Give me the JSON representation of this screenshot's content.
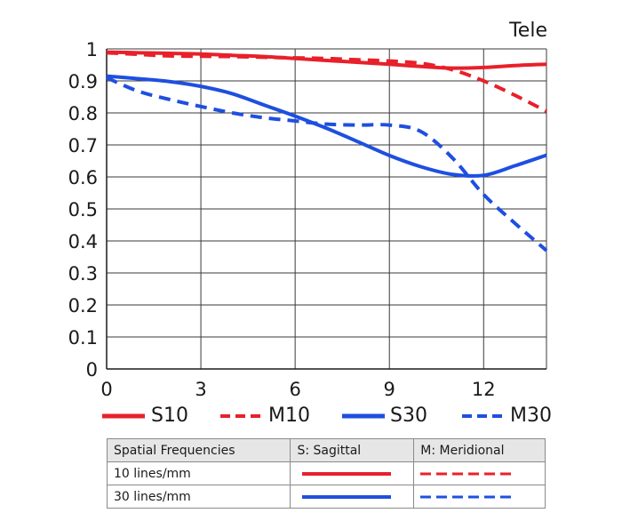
{
  "chart_data": {
    "type": "line",
    "title": "Tele",
    "xlabel": "",
    "ylabel": "",
    "xlim": [
      0,
      14
    ],
    "ylim": [
      0,
      1
    ],
    "x_ticks": [
      0,
      3,
      6,
      9,
      12
    ],
    "y_ticks": [
      0,
      0.1,
      0.2,
      0.3,
      0.4,
      0.5,
      0.6,
      0.7,
      0.8,
      0.9,
      1
    ],
    "y_tick_labels": [
      "0",
      "0.1",
      "0.2",
      "0.3",
      "0.4",
      "0.5",
      "0.6",
      "0.7",
      "0.8",
      "0.9",
      "1"
    ],
    "grid": true,
    "legend_position": "bottom",
    "x": [
      0,
      1,
      2,
      3,
      4,
      5,
      6,
      7,
      8,
      9,
      10,
      11,
      12,
      13,
      14
    ],
    "series": [
      {
        "name": "S10",
        "color": "#e8202a",
        "dashed": false,
        "values": [
          0.99,
          0.988,
          0.986,
          0.984,
          0.98,
          0.976,
          0.97,
          0.964,
          0.958,
          0.952,
          0.945,
          0.94,
          0.942,
          0.948,
          0.952
        ]
      },
      {
        "name": "M10",
        "color": "#e8202a",
        "dashed": true,
        "values": [
          0.988,
          0.983,
          0.978,
          0.977,
          0.976,
          0.974,
          0.972,
          0.97,
          0.966,
          0.962,
          0.955,
          0.935,
          0.9,
          0.855,
          0.805
        ]
      },
      {
        "name": "S30",
        "color": "#1e4fe0",
        "dashed": false,
        "values": [
          0.915,
          0.907,
          0.898,
          0.883,
          0.86,
          0.825,
          0.79,
          0.752,
          0.71,
          0.667,
          0.632,
          0.608,
          0.605,
          0.635,
          0.668
        ]
      },
      {
        "name": "M30",
        "color": "#1e4fe0",
        "dashed": true,
        "values": [
          0.91,
          0.868,
          0.842,
          0.82,
          0.8,
          0.785,
          0.775,
          0.765,
          0.762,
          0.762,
          0.742,
          0.66,
          0.545,
          0.455,
          0.37
        ]
      }
    ]
  },
  "legend": [
    {
      "label": "S10",
      "color": "#e8202a",
      "dashed": false
    },
    {
      "label": "M10",
      "color": "#e8202a",
      "dashed": true
    },
    {
      "label": "S30",
      "color": "#1e4fe0",
      "dashed": false
    },
    {
      "label": "M30",
      "color": "#1e4fe0",
      "dashed": true
    }
  ],
  "table": {
    "headers": [
      "Spatial Frequencies",
      "S: Sagittal",
      "M: Meridional"
    ],
    "rows": [
      {
        "label": "10 lines/mm",
        "color": "#e8202a"
      },
      {
        "label": "30 lines/mm",
        "color": "#1e4fe0"
      }
    ]
  }
}
